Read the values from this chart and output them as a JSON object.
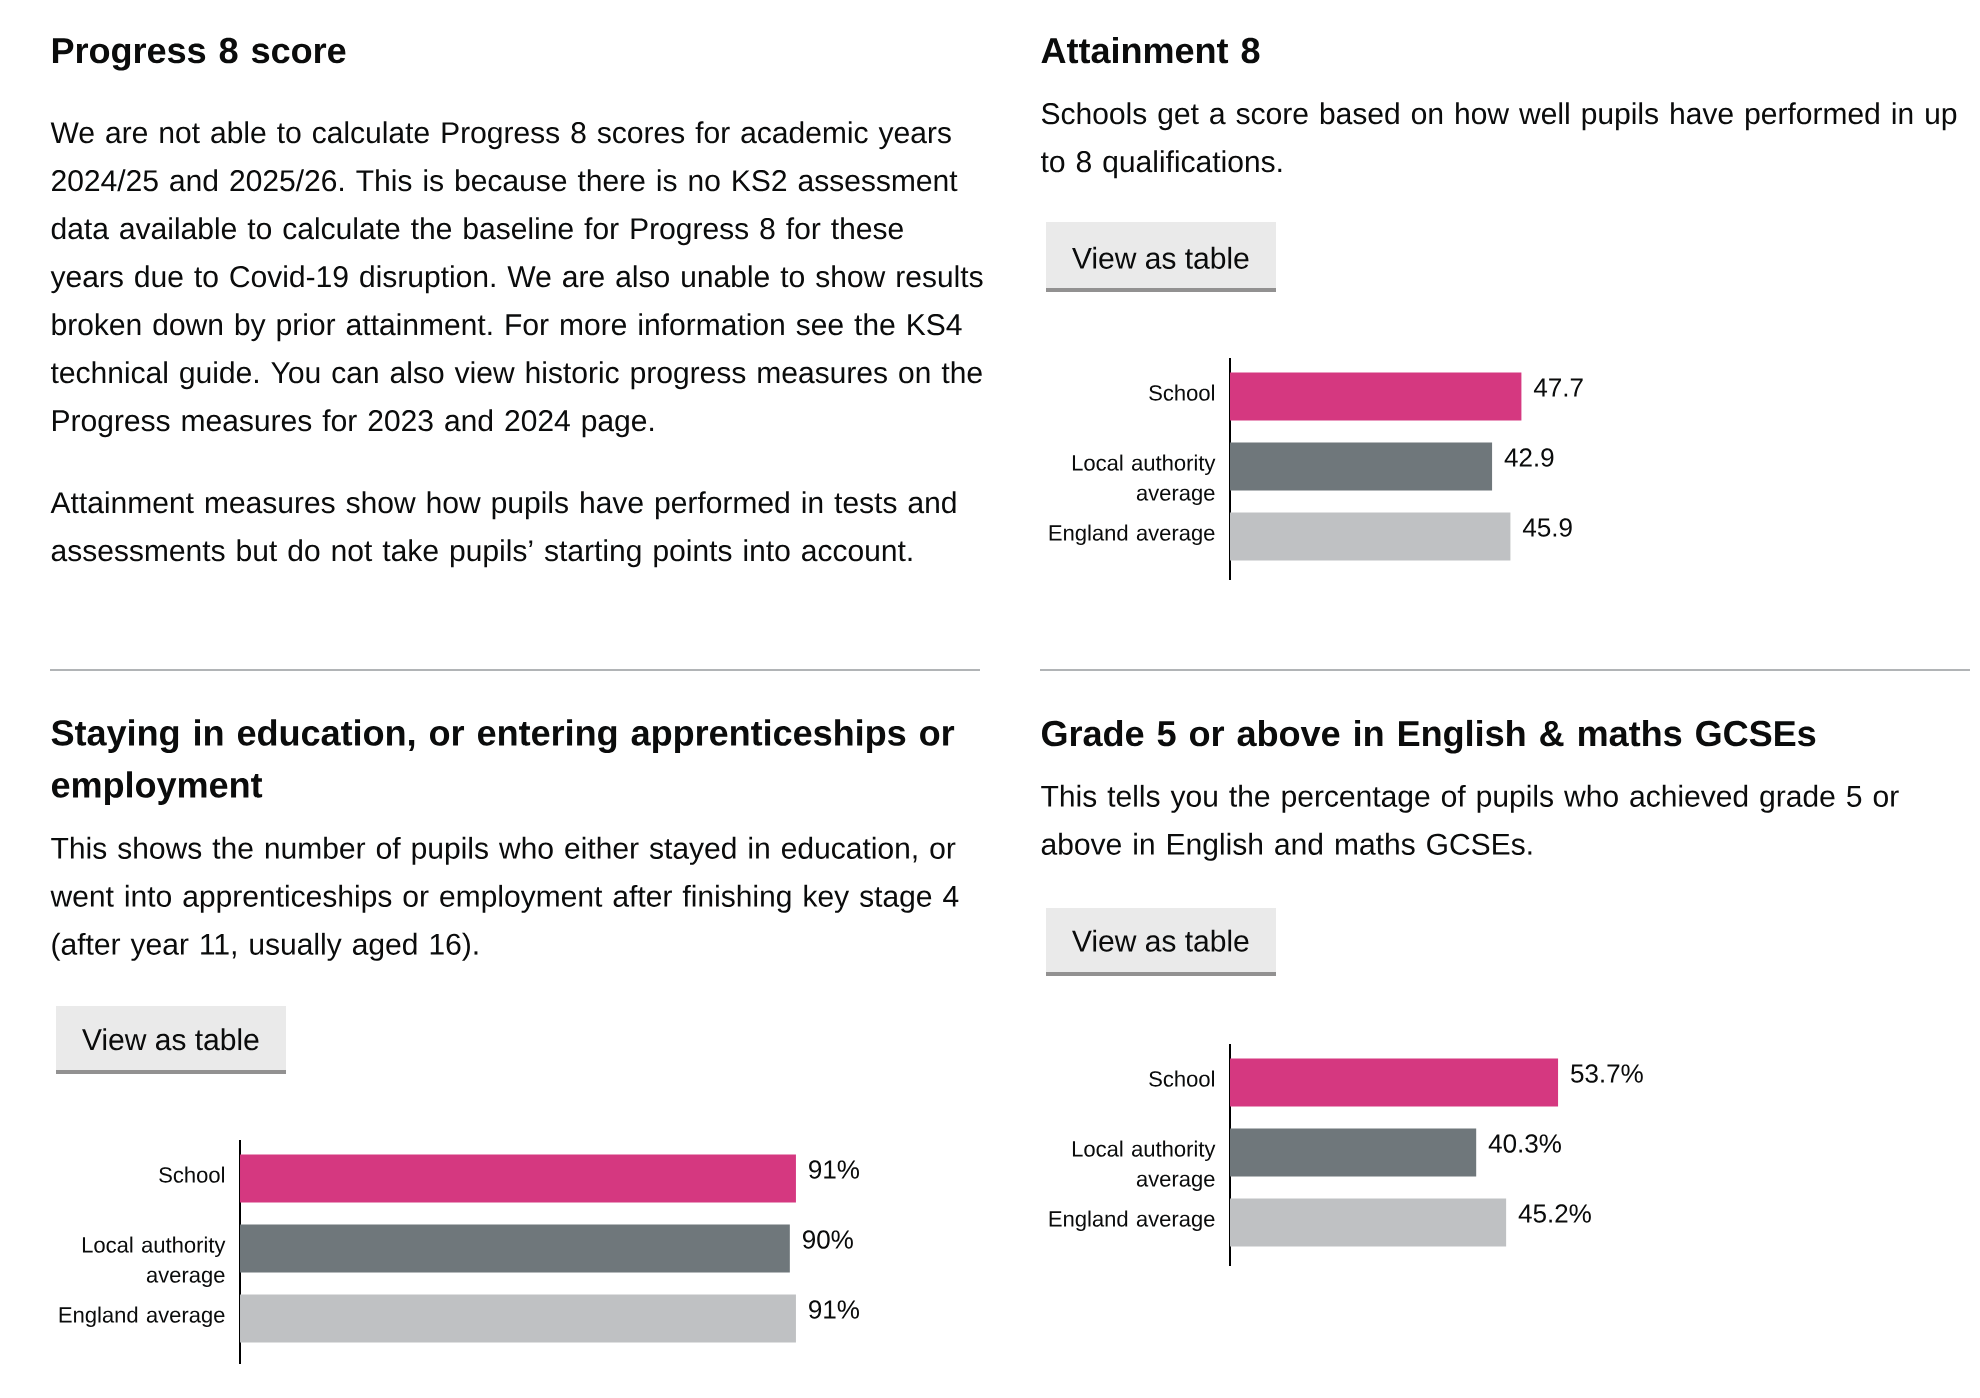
{
  "chart_data": [
    {
      "type": "other",
      "title": "Progress 8 score",
      "annotations": [
        "We are not able to calculate Progress 8 scores for academic years 2024/25 and 2025/26. This is because there is no KS2 assessment data available to calculate the baseline for Progress 8 for these years due to Covid-19 disruption. We are also unable to show results broken down by prior attainment. For more information see the KS4 technical guide. You can also view historic progress measures on the Progress measures for 2023 and 2024 page.",
        "Attainment measures show how pupils have performed in tests and assessments but do not take pupils’ starting points into account."
      ]
    },
    {
      "type": "bar",
      "orientation": "horizontal",
      "title": "Attainment 8",
      "subtitle": "Schools get a score based on how well pupils have performed in up to 8 qualifications.",
      "annotations": [
        "View as table"
      ],
      "categories": [
        "School",
        "Local authority average",
        "England average"
      ],
      "values": [
        47.7,
        42.9,
        45.9
      ],
      "colors": [
        "#d53880",
        "#6f777b",
        "#bfc1c3"
      ],
      "data_labels": true,
      "tick_labels": "y"
    },
    {
      "type": "bar",
      "orientation": "horizontal",
      "title": "Staying in education, or entering apprenticeships or employment",
      "subtitle": "This shows the number of pupils who either stayed in education, or went into apprenticeships or employment after finishing key stage 4 (after year 11, usually aged 16).",
      "annotations": [
        "View as table"
      ],
      "categories": [
        "School",
        "Local authority average",
        "England average"
      ],
      "values": [
        91,
        90,
        91
      ],
      "value_labels": [
        "91%",
        "90%",
        "91%"
      ],
      "colors": [
        "#d53880",
        "#6f777b",
        "#bfc1c3"
      ],
      "tick_labels": "y"
    },
    {
      "type": "bar",
      "orientation": "horizontal",
      "title": "Grade 5 or above in English & maths GCSEs",
      "subtitle": "This tells you the percentage of pupils who achieved grade 5 or above in English and maths GCSEs.",
      "annotations": [
        "View as table"
      ],
      "categories": [
        "School",
        "Local authority average",
        "England average"
      ],
      "values": [
        53.7,
        40.3,
        45.2
      ],
      "value_labels": [
        "53.7%",
        "40.3%",
        "45.2%"
      ],
      "colors": [
        "#d53880",
        "#6f777b",
        "#bfc1c3"
      ],
      "tick_labels": "y"
    }
  ]
}
